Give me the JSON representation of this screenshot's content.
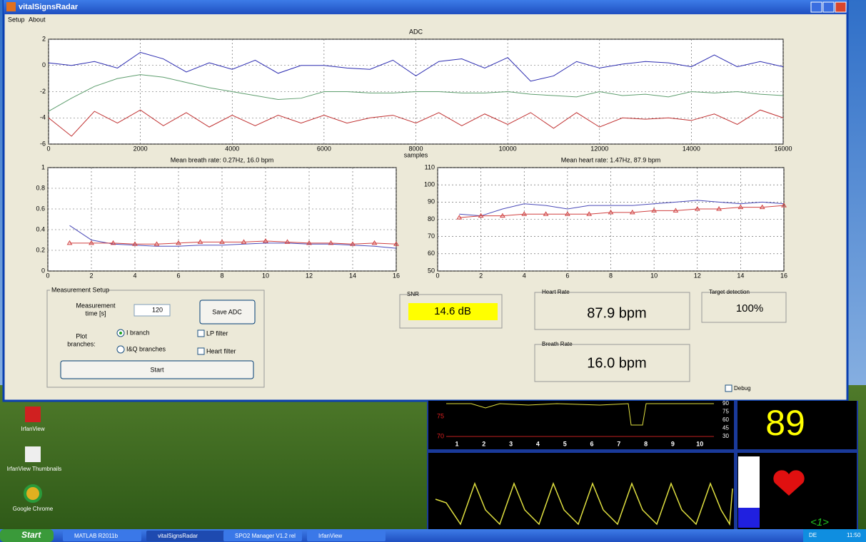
{
  "window": {
    "title": "vitalSignsRadar",
    "menu": [
      "Setup",
      "About"
    ]
  },
  "chart_data": [
    {
      "type": "line",
      "title": "ADC",
      "x_label": "samples",
      "xlim": [
        0,
        16000
      ],
      "xticks": [
        0,
        2000,
        4000,
        6000,
        8000,
        10000,
        12000,
        14000,
        16000
      ],
      "ylim": [
        -6,
        2
      ],
      "yticks": [
        -6,
        -4,
        -2,
        0,
        2
      ],
      "grid": true,
      "x": [
        0,
        500,
        1000,
        1500,
        2000,
        2500,
        3000,
        3500,
        4000,
        4500,
        5000,
        5500,
        6000,
        6500,
        7000,
        7500,
        8000,
        8500,
        9000,
        9500,
        10000,
        10500,
        11000,
        11500,
        12000,
        12500,
        13000,
        13500,
        14000,
        14500,
        15000,
        15500,
        16000
      ],
      "series": [
        {
          "color": "#2a2ab0",
          "values": [
            0.2,
            0,
            0.3,
            -0.2,
            1,
            0.5,
            -0.5,
            0.2,
            -0.3,
            0.4,
            -0.6,
            0,
            0,
            -0.2,
            -0.3,
            0.4,
            -0.8,
            0.3,
            0.5,
            -0.2,
            0.6,
            -1.2,
            -0.8,
            0.3,
            -0.2,
            0.1,
            0.3,
            0.2,
            -0.1,
            0.8,
            -0.1,
            0.3,
            -0.1
          ]
        },
        {
          "color": "#5e9e6e",
          "values": [
            -3.5,
            -2.5,
            -1.6,
            -1,
            -0.7,
            -0.9,
            -1.3,
            -1.7,
            -2,
            -2.3,
            -2.6,
            -2.5,
            -2,
            -2,
            -2.1,
            -2.1,
            -2,
            -2,
            -2.1,
            -2.1,
            -2,
            -2.2,
            -2.3,
            -2.4,
            -2,
            -2.3,
            -2.2,
            -2.4,
            -2,
            -2.1,
            -2,
            -2.2,
            -2.3
          ]
        },
        {
          "color": "#c03030",
          "values": [
            -4,
            -5.4,
            -3.5,
            -4.4,
            -3.4,
            -4.6,
            -3.6,
            -4.7,
            -3.8,
            -4.6,
            -3.8,
            -4.4,
            -3.8,
            -4.4,
            -4,
            -3.8,
            -4.4,
            -3.6,
            -4.6,
            -3.7,
            -4.5,
            -3.6,
            -4.8,
            -3.6,
            -4.7,
            -4,
            -4.1,
            -4,
            -4.2,
            -3.7,
            -4.5,
            -3.4,
            -4
          ]
        }
      ]
    },
    {
      "type": "line",
      "title": "Mean breath rate: 0.27Hz, 16.0 bpm",
      "xlim": [
        0,
        16
      ],
      "xticks": [
        0,
        2,
        4,
        6,
        8,
        10,
        12,
        14,
        16
      ],
      "ylim": [
        0,
        1
      ],
      "yticks": [
        0,
        0.2,
        0.4,
        0.6,
        0.8,
        1
      ],
      "grid": true,
      "x": [
        1,
        2,
        3,
        4,
        5,
        6,
        7,
        8,
        9,
        10,
        11,
        12,
        13,
        14,
        15,
        16
      ],
      "series": [
        {
          "color": "#4a4ab8",
          "values": [
            0.44,
            0.3,
            0.26,
            0.25,
            0.24,
            0.24,
            0.25,
            0.25,
            0.26,
            0.27,
            0.27,
            0.26,
            0.26,
            0.25,
            0.24,
            0.22
          ]
        },
        {
          "color": "#d04040",
          "marker": "triangle",
          "values": [
            0.27,
            0.27,
            0.27,
            0.26,
            0.26,
            0.27,
            0.28,
            0.28,
            0.28,
            0.29,
            0.28,
            0.27,
            0.27,
            0.26,
            0.27,
            0.26
          ]
        }
      ]
    },
    {
      "type": "line",
      "title": "Mean heart rate: 1.47Hz, 87.9 bpm",
      "xlim": [
        0,
        16
      ],
      "xticks": [
        0,
        2,
        4,
        6,
        8,
        10,
        12,
        14,
        16
      ],
      "ylim": [
        50,
        110
      ],
      "yticks": [
        50,
        60,
        70,
        80,
        90,
        100,
        110
      ],
      "grid": true,
      "x": [
        1,
        2,
        3,
        4,
        5,
        6,
        7,
        8,
        9,
        10,
        11,
        12,
        13,
        14,
        15,
        16
      ],
      "series": [
        {
          "color": "#4a4ab8",
          "values": [
            83,
            82,
            86,
            89,
            88,
            86,
            88,
            88,
            88,
            89,
            90,
            91,
            90,
            89,
            90,
            89
          ]
        },
        {
          "color": "#d04040",
          "marker": "triangle",
          "values": [
            81,
            82,
            82,
            83,
            83,
            83,
            83,
            84,
            84,
            85,
            85,
            86,
            86,
            87,
            87,
            88
          ]
        }
      ]
    }
  ],
  "setup": {
    "title": "Measurement Setup",
    "time_label": [
      "Measurement",
      "time [s]"
    ],
    "time_value": "120",
    "save_button": "Save ADC",
    "branches_label": [
      "Plot",
      "branches:"
    ],
    "radio_i": "I branch",
    "radio_iq": "I&Q branches",
    "lp_filter": "LP filter",
    "heart_filter": "Heart filter",
    "start_button": "Start"
  },
  "snr": {
    "label": "SNR",
    "value": "14.6 dB"
  },
  "heart_rate": {
    "label": "Heart Rate",
    "value": "87.9 bpm"
  },
  "breath_rate": {
    "label": "Breath Rate",
    "value": "16.0 bpm"
  },
  "target": {
    "label": "Target detection",
    "value": "100%"
  },
  "debug": "Debug",
  "desktop": {
    "icons": [
      "IrfanView",
      "IrfanView Thumbnails",
      "Google Chrome"
    ]
  },
  "spo2": {
    "value": "89",
    "x_labels": [
      "1",
      "2",
      "3",
      "4",
      "5",
      "6",
      "7",
      "8",
      "9",
      "10"
    ],
    "left_labels": [
      "75",
      "70"
    ],
    "right_labels": [
      "90",
      "75",
      "60",
      "45",
      "30"
    ],
    "page": "<1>"
  },
  "taskbar": {
    "start": "Start",
    "items": [
      "MATLAB R2011b",
      "vitalSignsRadar",
      "SPO2 Manager V1.2 rel",
      "IrfanView"
    ],
    "lang": "DE",
    "clock": "11:50"
  }
}
